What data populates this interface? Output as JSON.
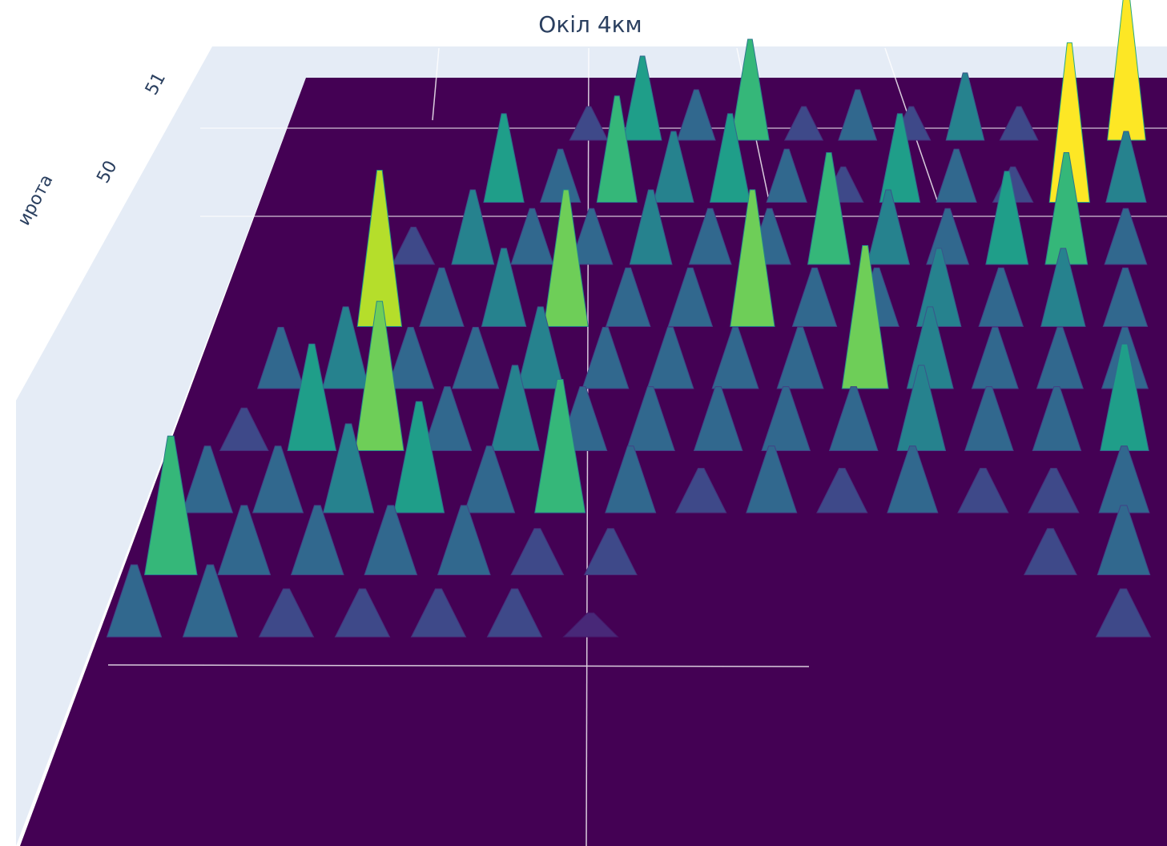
{
  "chart_data": {
    "type": "surface",
    "title": "Окіл 4км",
    "y_label": "ирота",
    "yticks": [
      50,
      51
    ],
    "colorscale": [
      "#440154",
      "#482878",
      "#3e4989",
      "#31688e",
      "#26828e",
      "#1f9e89",
      "#35b779",
      "#6ece58",
      "#b5de2b",
      "#fde725"
    ],
    "z": [
      [
        0,
        0,
        0,
        2,
        5,
        3,
        6,
        2,
        3,
        2,
        4,
        2,
        0,
        9
      ],
      [
        0,
        0,
        5,
        3,
        6,
        4,
        5,
        3,
        2,
        5,
        3,
        2,
        9,
        4
      ],
      [
        0,
        2,
        4,
        3,
        3,
        4,
        3,
        3,
        6,
        4,
        3,
        5,
        6,
        3
      ],
      [
        0,
        8,
        3,
        4,
        7,
        3,
        3,
        7,
        3,
        3,
        4,
        3,
        4,
        3
      ],
      [
        3,
        4,
        3,
        3,
        4,
        3,
        3,
        3,
        3,
        7,
        4,
        3,
        3,
        3
      ],
      [
        2,
        5,
        7,
        3,
        4,
        3,
        3,
        3,
        3,
        3,
        4,
        3,
        3,
        5
      ],
      [
        3,
        3,
        4,
        5,
        3,
        6,
        3,
        2,
        3,
        2,
        3,
        2,
        2,
        3
      ],
      [
        6,
        3,
        3,
        3,
        3,
        2,
        2,
        0,
        0,
        0,
        0,
        0,
        2,
        3
      ],
      [
        3,
        3,
        2,
        2,
        2,
        2,
        1,
        0,
        0,
        0,
        0,
        0,
        0,
        2
      ]
    ]
  }
}
